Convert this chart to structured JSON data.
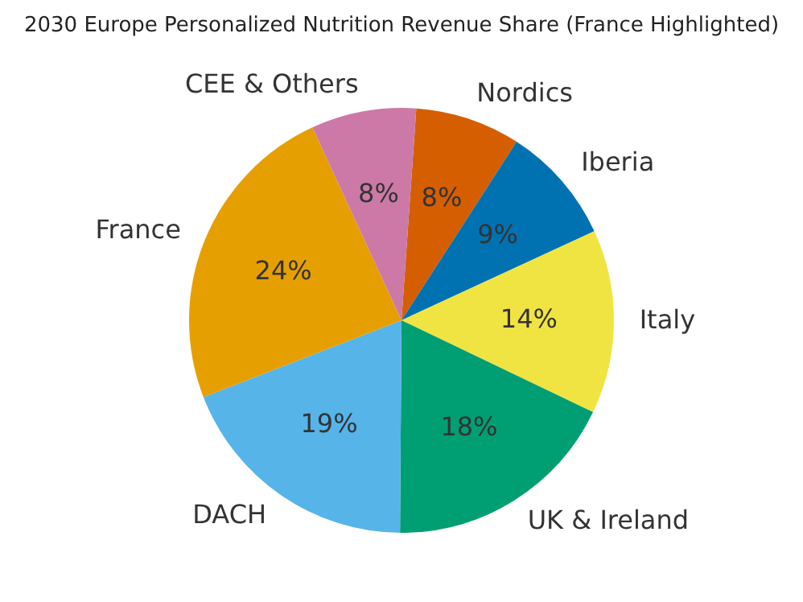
{
  "chart_data": {
    "type": "pie",
    "title": "2030 Europe Personalized Nutrition Revenue Share (France Highlighted)",
    "categories": [
      "Nordics",
      "Iberia",
      "Italy",
      "UK & Ireland",
      "DACH",
      "France",
      "CEE & Others"
    ],
    "values": [
      8,
      9,
      14,
      18,
      19,
      24,
      8
    ],
    "value_labels": [
      "8%",
      "9%",
      "14%",
      "18%",
      "19%",
      "24%",
      "8%"
    ],
    "colors": [
      "#d55e00",
      "#0072b2",
      "#f0e442",
      "#009e73",
      "#56b4e9",
      "#e69f00",
      "#cc79a7"
    ],
    "legend": false
  }
}
